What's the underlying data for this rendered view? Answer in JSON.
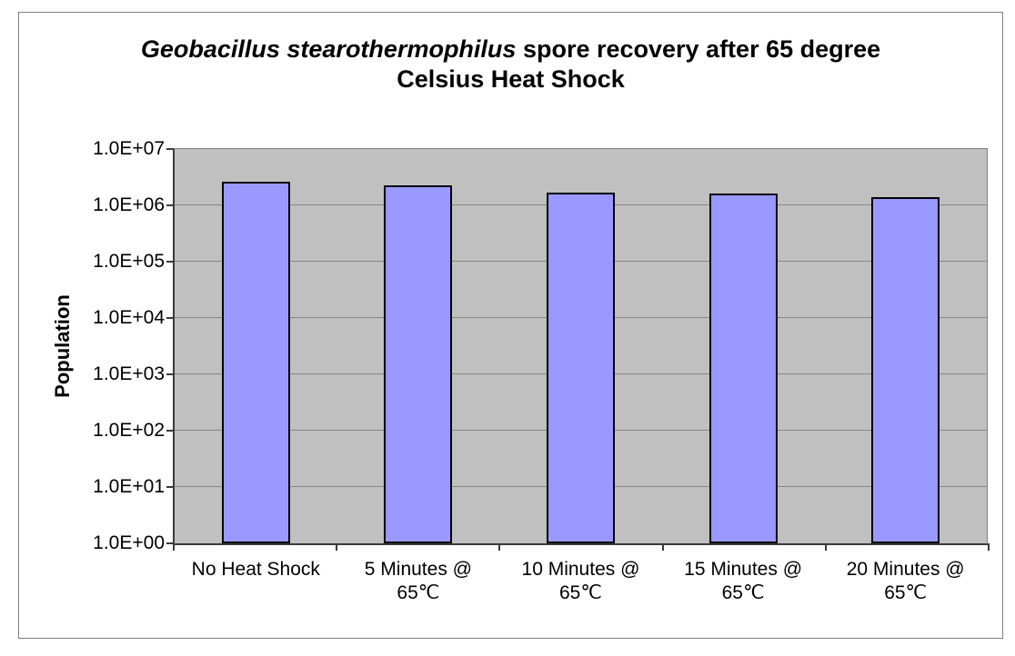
{
  "chart_data": {
    "type": "bar",
    "title": "Geobacillus stearothermophilus spore recovery after 65 degree Celsius Heat Shock",
    "title_parts": {
      "line1_italic": "Geobacillus stearothermophilus",
      "line1_rest": " spore recovery after 65 degree",
      "line2": "Celsius Heat Shock"
    },
    "xlabel": "",
    "ylabel": "Population",
    "categories": [
      "No Heat Shock",
      "5 Minutes @\n65℃",
      "10 Minutes @\n65℃",
      "15 Minutes @\n65℃",
      "20 Minutes @\n65℃"
    ],
    "values": [
      2600000,
      2300000,
      1700000,
      1600000,
      1400000
    ],
    "y_scale": "log10",
    "ylim": [
      1,
      10000000
    ],
    "y_ticks": [
      "1.0E+07",
      "1.0E+06",
      "1.0E+05",
      "1.0E+04",
      "1.0E+03",
      "1.0E+02",
      "1.0E+01",
      "1.0E+00"
    ],
    "grid": true,
    "legend": "none",
    "colors": {
      "bar_fill": "#9999ff",
      "bar_border": "#000000",
      "plot_background": "#c0c0c0",
      "gridline": "#878787",
      "axis_line": "#3a3a3a",
      "chart_border": "#7f7f7f",
      "text": "#000000"
    }
  }
}
